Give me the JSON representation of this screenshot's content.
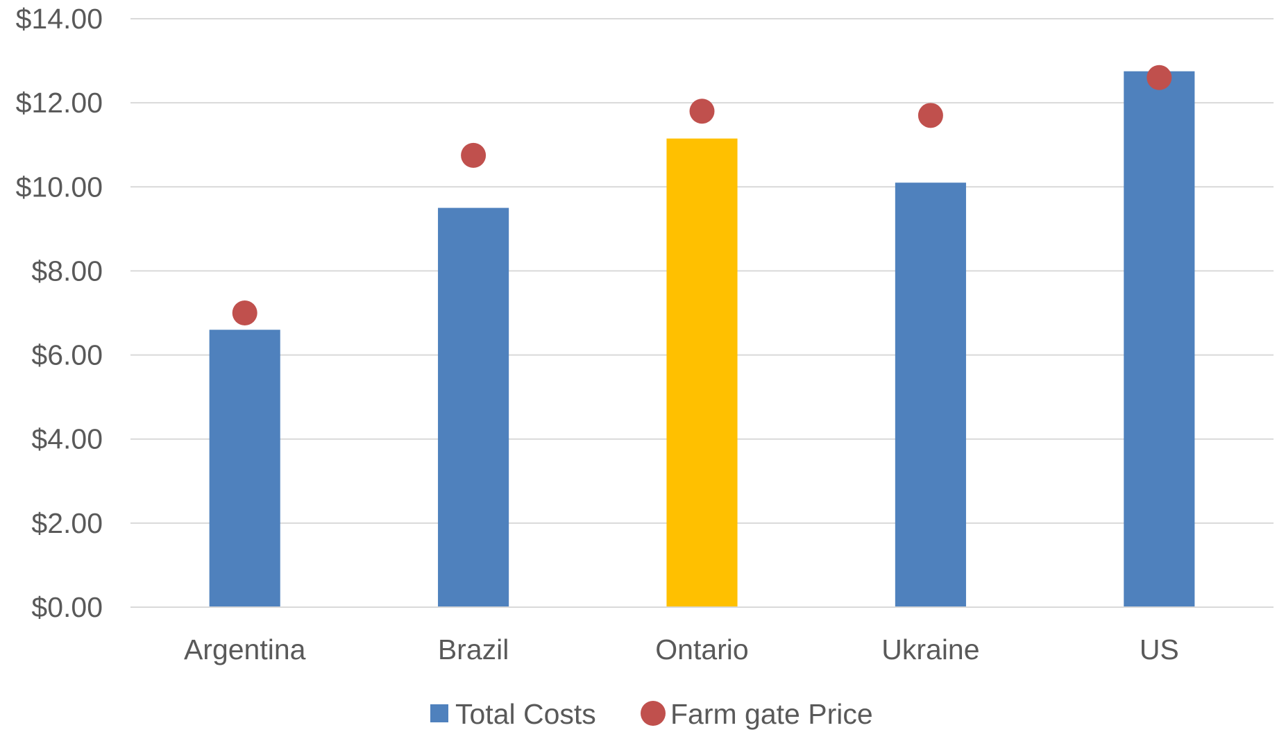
{
  "chart_data": {
    "type": "bar",
    "categories": [
      "Argentina",
      "Brazil",
      "Ontario",
      "Ukraine",
      "US"
    ],
    "series": [
      {
        "name": "Total Costs",
        "kind": "bar",
        "values": [
          6.6,
          9.5,
          11.15,
          10.1,
          12.75
        ],
        "color": "#4f81bd",
        "point_colors": [
          "#4f81bd",
          "#4f81bd",
          "#ffc000",
          "#4f81bd",
          "#4f81bd"
        ]
      },
      {
        "name": "Farm gate Price",
        "kind": "scatter",
        "values": [
          7.0,
          10.75,
          11.8,
          11.7,
          12.6
        ],
        "color": "#c0504d"
      }
    ],
    "ylim": [
      0,
      14
    ],
    "yticks": [
      0,
      2,
      4,
      6,
      8,
      10,
      12,
      14
    ],
    "ytick_labels": [
      "$0.00",
      "$2.00",
      "$4.00",
      "$6.00",
      "$8.00",
      "$10.00",
      "$12.00",
      "$14.00"
    ],
    "title": "",
    "xlabel": "",
    "ylabel": "",
    "grid": true,
    "legend_position": "bottom",
    "gridline_color": "#d9d9d9",
    "text_color": "#595959"
  }
}
